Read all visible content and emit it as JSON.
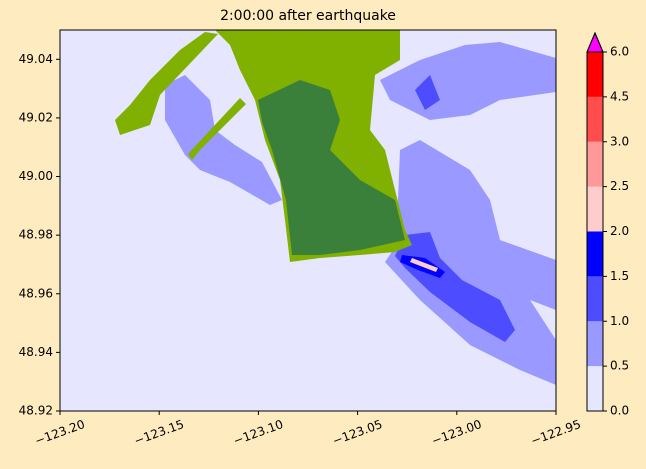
{
  "chart_data": {
    "type": "heatmap",
    "title": "2:00:00 after earthquake",
    "xlim": [
      -123.2,
      -122.95
    ],
    "xticks": [
      {
        "value": -123.2,
        "label": "−123.20"
      },
      {
        "value": -123.15,
        "label": "−123.15"
      },
      {
        "value": -123.1,
        "label": "−123.10"
      },
      {
        "value": -123.05,
        "label": "−123.05"
      },
      {
        "value": -123.0,
        "label": "−123.00"
      },
      {
        "value": -122.95,
        "label": "−122.95"
      }
    ],
    "ylim": [
      48.92,
      49.05
    ],
    "yticks": [
      48.92,
      48.94,
      48.96,
      48.98,
      {
        "value": 49.0,
        "label": "49.00"
      },
      49.02,
      49.04
    ],
    "land_colors": [
      "#80b000",
      "#3a7f3a"
    ],
    "colorbar": {
      "boundaries": [
        {
          "value": 0,
          "label": "0.0"
        },
        0.5,
        {
          "value": 1,
          "label": "1.0"
        },
        1.5,
        {
          "value": 2,
          "label": "2.0"
        },
        2.5,
        {
          "value": 3,
          "label": "3.0"
        },
        4.5,
        {
          "value": 6,
          "label": "6.0"
        }
      ],
      "colors": [
        "#e6e6ff",
        "#9999ff",
        "#4d4dff",
        "#0000ff",
        "#ffcccc",
        "#ff9999",
        "#ff4d4d",
        "#ff0000"
      ],
      "extend_color": "#ff00ff"
    }
  }
}
